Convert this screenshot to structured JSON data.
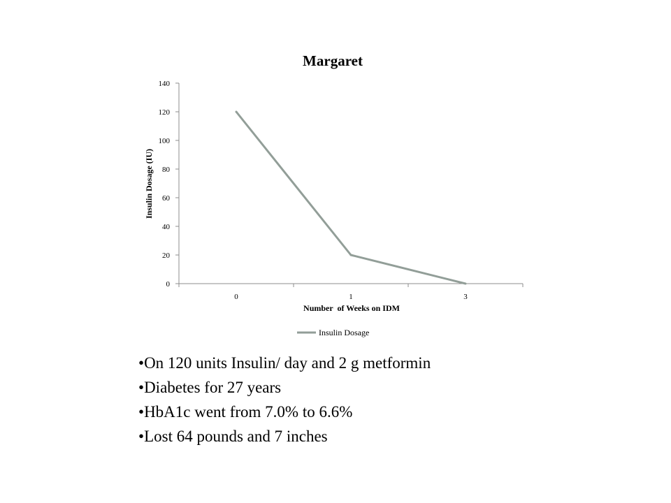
{
  "colors": {
    "series_line": "#929e98",
    "axis": "#8c8c8c"
  },
  "chart_data": {
    "type": "line",
    "title": "Margaret",
    "xlabel": "Number  of Weeks on IDM",
    "ylabel": "Insulin Dosage (IU)",
    "categories": [
      "0",
      "1",
      "3"
    ],
    "series": [
      {
        "name": "Insulin Dosage",
        "values": [
          120,
          20,
          0
        ]
      }
    ],
    "ylim": [
      0,
      140
    ],
    "yticks": [
      0,
      20,
      40,
      60,
      80,
      100,
      120,
      140
    ],
    "grid": false,
    "legend": "bottom"
  },
  "bullets": [
    "On 120 units Insulin/ day and 2 g metformin",
    "Diabetes for 27 years",
    "HbA1c went from 7.0% to 6.6%",
    "Lost 64 pounds and 7 inches"
  ]
}
